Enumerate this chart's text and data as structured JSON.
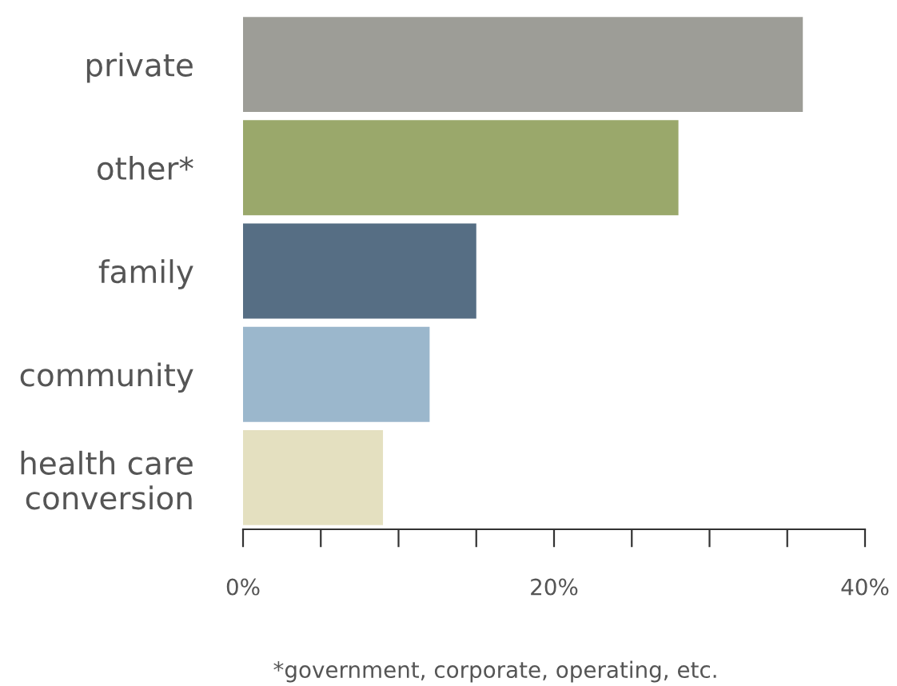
{
  "chart_data": {
    "type": "bar",
    "orientation": "horizontal",
    "categories": [
      "private",
      "other*",
      "family",
      "community",
      "health care\nconversion"
    ],
    "values": [
      36,
      28,
      15,
      12,
      9
    ],
    "colors": [
      "#9d9d97",
      "#9aa86b",
      "#566e84",
      "#9bb7cc",
      "#e4e0c0"
    ],
    "xlim": [
      0,
      40
    ],
    "xticks": [
      {
        "value": 0,
        "label": "0%"
      },
      {
        "value": 5,
        "label": null
      },
      {
        "value": 10,
        "label": null
      },
      {
        "value": 15,
        "label": null
      },
      {
        "value": 20,
        "label": "20%"
      },
      {
        "value": 25,
        "label": null
      },
      {
        "value": 30,
        "label": null
      },
      {
        "value": 35,
        "label": null
      },
      {
        "value": 40,
        "label": "40%"
      }
    ],
    "grid": false,
    "annotations": [
      "*government, corporate, operating, etc."
    ]
  }
}
